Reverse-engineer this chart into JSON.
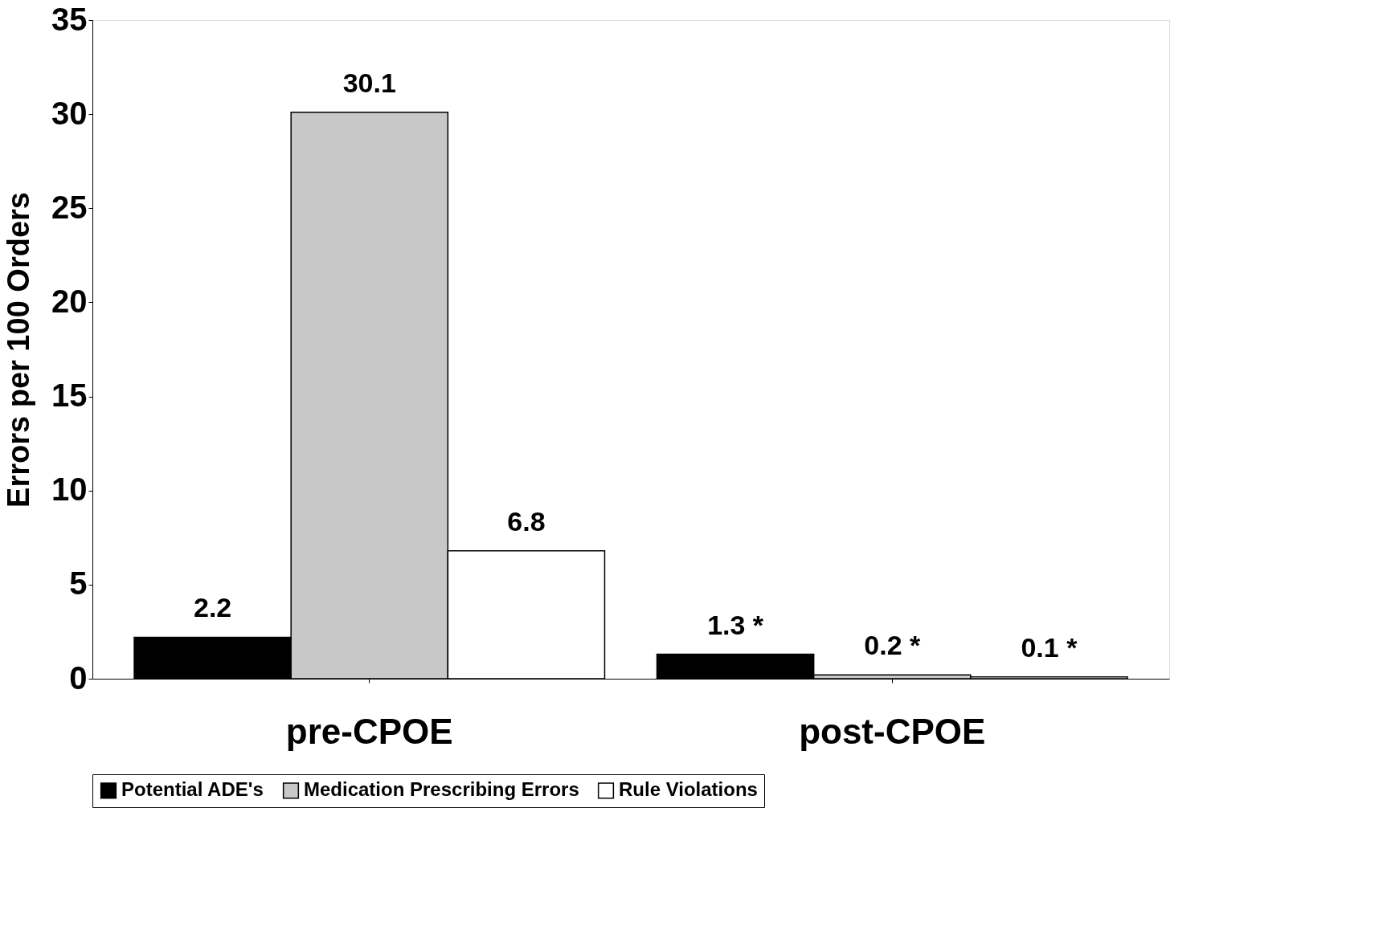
{
  "chart_data": {
    "type": "bar",
    "ylabel": "Errors per 100 Orders",
    "categories": [
      "pre-CPOE",
      "post-CPOE"
    ],
    "series": [
      {
        "name": "Potential ADE's",
        "color": "#000000",
        "values": [
          2.2,
          1.3
        ],
        "value_labels": [
          "2.2",
          "1.3 *"
        ]
      },
      {
        "name": "Medication Prescribing Errors",
        "color": "#c8c8c8",
        "values": [
          30.1,
          0.2
        ],
        "value_labels": [
          "30.1",
          "0.2 *"
        ]
      },
      {
        "name": "Rule Violations",
        "color": "#ffffff",
        "values": [
          6.8,
          0.1
        ],
        "value_labels": [
          "6.8",
          "0.1 *"
        ]
      }
    ],
    "ylim": [
      0,
      35
    ],
    "yticks": [
      0,
      5,
      10,
      15,
      20,
      25,
      30,
      35
    ],
    "grid": false,
    "legend": "bottom"
  }
}
